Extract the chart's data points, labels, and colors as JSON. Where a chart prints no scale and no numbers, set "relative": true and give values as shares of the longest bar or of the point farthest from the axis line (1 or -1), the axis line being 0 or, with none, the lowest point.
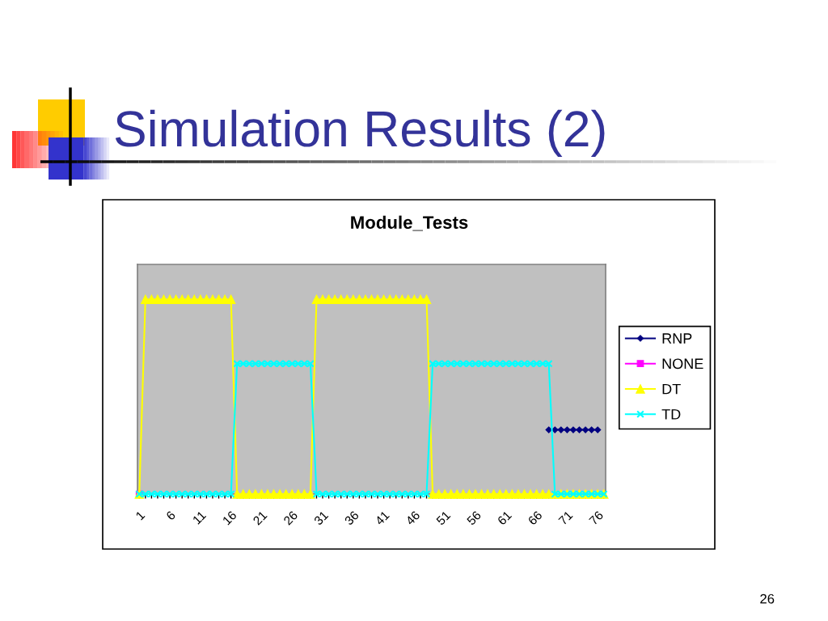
{
  "chart_data": {
    "type": "line",
    "title": "Simulation Results (2)",
    "subtitle": "Module_Tests",
    "relative": true,
    "legend": "right",
    "line_style": "solid",
    "tick_labels": "x",
    "annotations": [
      "26"
    ],
    "categories": [
      "1",
      null,
      null,
      null,
      null,
      "6",
      null,
      null,
      null,
      null,
      "11",
      null,
      null,
      null,
      null,
      "16",
      null,
      null,
      null,
      null,
      "21",
      null,
      null,
      null,
      null,
      "26",
      null,
      null,
      null,
      null,
      "31",
      null,
      null,
      null,
      null,
      "36",
      null,
      null,
      null,
      null,
      "41",
      null,
      null,
      null,
      null,
      "46",
      null,
      null,
      null,
      null,
      "51",
      null,
      null,
      null,
      null,
      "56",
      null,
      null,
      null,
      null,
      "61",
      null,
      null,
      null,
      null,
      "66",
      null,
      null,
      null,
      null,
      "71",
      null,
      null,
      null,
      null,
      "76",
      null
    ],
    "series": [
      {
        "name": "RNP",
        "color": "#000080",
        "marker": "diamond",
        "values": [
          null,
          null,
          null,
          null,
          null,
          null,
          null,
          null,
          null,
          null,
          null,
          null,
          null,
          null,
          null,
          null,
          null,
          null,
          null,
          null,
          null,
          null,
          null,
          null,
          null,
          null,
          null,
          null,
          null,
          null,
          null,
          null,
          null,
          null,
          null,
          null,
          null,
          null,
          null,
          null,
          null,
          null,
          null,
          null,
          null,
          null,
          null,
          null,
          null,
          null,
          null,
          null,
          null,
          null,
          null,
          null,
          null,
          null,
          null,
          null,
          null,
          null,
          null,
          null,
          null,
          null,
          null,
          0.33,
          0.33,
          0.33,
          0.33,
          0.33,
          0.33,
          0.33,
          0.33,
          0.33,
          null
        ]
      },
      {
        "name": "NONE",
        "color": "#ff00ff",
        "marker": "square",
        "values": [
          0,
          null,
          null,
          null,
          null,
          null,
          null,
          null,
          null,
          null,
          null,
          null,
          null,
          null,
          null,
          null,
          null,
          null,
          null,
          null,
          null,
          null,
          null,
          null,
          null,
          null,
          null,
          null,
          null,
          null,
          null,
          null,
          null,
          null,
          null,
          null,
          null,
          null,
          null,
          null,
          null,
          null,
          null,
          null,
          null,
          null,
          null,
          null,
          null,
          null,
          null,
          null,
          null,
          null,
          null,
          null,
          null,
          null,
          null,
          null,
          null,
          null,
          null,
          null,
          null,
          null,
          null,
          null,
          null,
          null,
          null,
          null,
          null,
          null,
          null,
          null,
          null
        ]
      },
      {
        "name": "DT",
        "color": "#ffff00",
        "marker": "triangle",
        "values": [
          0,
          1,
          1,
          1,
          1,
          1,
          1,
          1,
          1,
          1,
          1,
          1,
          1,
          1,
          1,
          1,
          0,
          0,
          0,
          0,
          0,
          0,
          0,
          0,
          0,
          0,
          0,
          0,
          0,
          1,
          1,
          1,
          1,
          1,
          1,
          1,
          1,
          1,
          1,
          1,
          1,
          1,
          1,
          1,
          1,
          1,
          1,
          1,
          0,
          0,
          0,
          0,
          0,
          0,
          0,
          0,
          0,
          0,
          0,
          0,
          0,
          0,
          0,
          0,
          0,
          0,
          0,
          0,
          0,
          0,
          0,
          0,
          0,
          0,
          0,
          0,
          0
        ]
      },
      {
        "name": "TD",
        "color": "#00ffff",
        "marker": "cross",
        "values": [
          0,
          0,
          0,
          0,
          0,
          0,
          0,
          0,
          0,
          0,
          0,
          0,
          0,
          0,
          0,
          0,
          0.67,
          0.67,
          0.67,
          0.67,
          0.67,
          0.67,
          0.67,
          0.67,
          0.67,
          0.67,
          0.67,
          0.67,
          0.67,
          0,
          0,
          0,
          0,
          0,
          0,
          0,
          0,
          0,
          0,
          0,
          0,
          0,
          0,
          0,
          0,
          0,
          0,
          0,
          0.67,
          0.67,
          0.67,
          0.67,
          0.67,
          0.67,
          0.67,
          0.67,
          0.67,
          0.67,
          0.67,
          0.67,
          0.67,
          0.67,
          0.67,
          0.67,
          0.67,
          0.67,
          0.67,
          0.67,
          0,
          0,
          0,
          0,
          0,
          0,
          0,
          0,
          0
        ]
      }
    ]
  }
}
